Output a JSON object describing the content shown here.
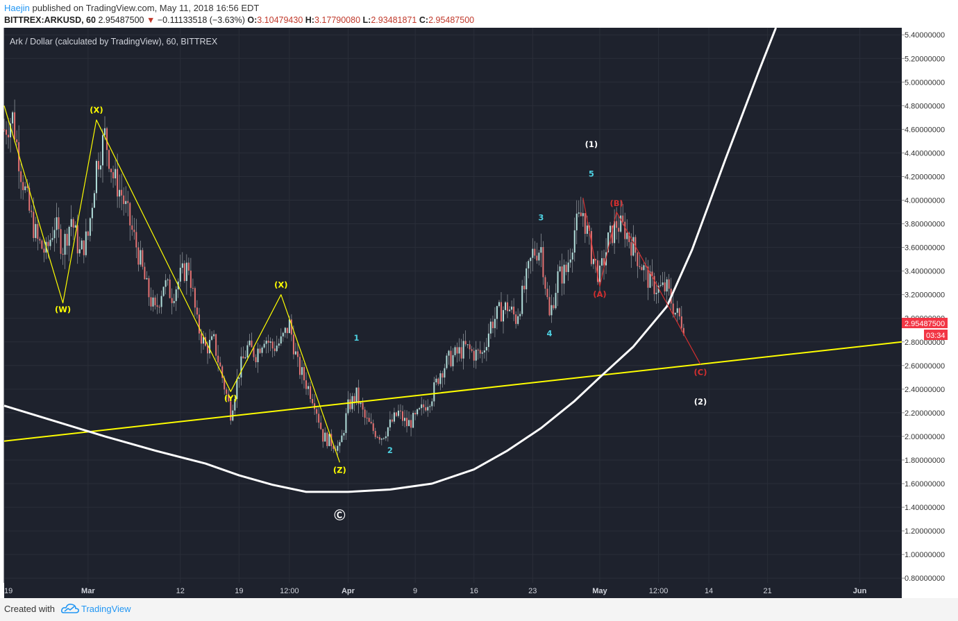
{
  "header": {
    "author": "Haejin",
    "published": "published on TradingView.com, May 11, 2018 16:56 EDT",
    "symbol": "BITTREX:ARKUSD, 60",
    "last_price": "2.95487500",
    "change": "−0.11133518 (−3.63%)",
    "o_label": "O:",
    "o_value": "3.10479430",
    "h_label": "H:",
    "h_value": "3.17790080",
    "l_label": "L:",
    "l_value": "2.93481871",
    "c_label": "C:",
    "c_value": "2.95487500"
  },
  "chart_data": {
    "type": "candlestick",
    "title": "Ark / Dollar (calculated by TradingView), 60, BITTREX",
    "y_range": [
      0.76,
      5.46
    ],
    "y_ticks": [
      "5.40000000",
      "5.20000000",
      "5.00000000",
      "4.80000000",
      "4.60000000",
      "4.40000000",
      "4.20000000",
      "4.00000000",
      "3.80000000",
      "3.60000000",
      "3.40000000",
      "3.20000000",
      "3.00000000",
      "2.80000000",
      "2.60000000",
      "2.40000000",
      "2.20000000",
      "2.00000000",
      "1.80000000",
      "1.60000000",
      "1.40000000",
      "1.20000000",
      "1.00000000",
      "0.80000000"
    ],
    "x_range": [
      "Feb 19",
      "Jun 6"
    ],
    "x_ticks": [
      {
        "label": "19",
        "date": "2018-02-19"
      },
      {
        "label": "Mar",
        "date": "2018-03-01"
      },
      {
        "label": "12",
        "date": "2018-03-12"
      },
      {
        "label": "19",
        "date": "2018-03-19"
      },
      {
        "label": "12:00",
        "date": "2018-03-25"
      },
      {
        "label": "Apr",
        "date": "2018-04-01"
      },
      {
        "label": "9",
        "date": "2018-04-09"
      },
      {
        "label": "16",
        "date": "2018-04-16"
      },
      {
        "label": "23",
        "date": "2018-04-23"
      },
      {
        "label": "May",
        "date": "2018-05-01"
      },
      {
        "label": "12:00",
        "date": "2018-05-08"
      },
      {
        "label": "14",
        "date": "2018-05-14"
      },
      {
        "label": "21",
        "date": "2018-05-21"
      },
      {
        "label": "Jun",
        "date": "2018-06-01"
      }
    ],
    "price_path": [
      [
        "2018-02-19",
        4.6
      ],
      [
        "2018-02-20",
        4.7
      ],
      [
        "2018-02-21",
        4.25
      ],
      [
        "2018-02-22",
        3.9
      ],
      [
        "2018-02-23",
        3.65
      ],
      [
        "2018-02-24",
        3.55
      ],
      [
        "2018-02-25",
        3.8
      ],
      [
        "2018-02-26",
        3.6
      ],
      [
        "2018-02-27",
        3.85
      ],
      [
        "2018-02-28",
        3.55
      ],
      [
        "2018-03-01",
        3.7
      ],
      [
        "2018-03-02",
        4.3
      ],
      [
        "2018-03-03",
        4.55
      ],
      [
        "2018-03-04",
        4.2
      ],
      [
        "2018-03-05",
        4.05
      ],
      [
        "2018-03-06",
        3.8
      ],
      [
        "2018-03-07",
        3.55
      ],
      [
        "2018-03-08",
        3.25
      ],
      [
        "2018-03-09",
        3.05
      ],
      [
        "2018-03-10",
        3.3
      ],
      [
        "2018-03-11",
        3.2
      ],
      [
        "2018-03-12",
        3.35
      ],
      [
        "2018-03-13",
        3.45
      ],
      [
        "2018-03-14",
        2.95
      ],
      [
        "2018-03-15",
        2.75
      ],
      [
        "2018-03-16",
        2.8
      ],
      [
        "2018-03-17",
        2.5
      ],
      [
        "2018-03-18",
        2.2
      ],
      [
        "2018-03-19",
        2.55
      ],
      [
        "2018-03-20",
        2.75
      ],
      [
        "2018-03-21",
        2.7
      ],
      [
        "2018-03-22",
        2.85
      ],
      [
        "2018-03-23",
        2.75
      ],
      [
        "2018-03-24",
        2.8
      ],
      [
        "2018-03-25",
        2.95
      ],
      [
        "2018-03-26",
        2.6
      ],
      [
        "2018-03-27",
        2.45
      ],
      [
        "2018-03-28",
        2.3
      ],
      [
        "2018-03-29",
        2.0
      ],
      [
        "2018-03-30",
        1.95
      ],
      [
        "2018-03-31",
        1.9
      ],
      [
        "2018-04-01",
        2.25
      ],
      [
        "2018-04-02",
        2.35
      ],
      [
        "2018-04-03",
        2.15
      ],
      [
        "2018-04-04",
        2.05
      ],
      [
        "2018-04-05",
        2.0
      ],
      [
        "2018-04-06",
        2.1
      ],
      [
        "2018-04-07",
        2.2
      ],
      [
        "2018-04-08",
        2.1
      ],
      [
        "2018-04-09",
        2.15
      ],
      [
        "2018-04-10",
        2.25
      ],
      [
        "2018-04-11",
        2.35
      ],
      [
        "2018-04-12",
        2.55
      ],
      [
        "2018-04-13",
        2.65
      ],
      [
        "2018-04-14",
        2.7
      ],
      [
        "2018-04-15",
        2.75
      ],
      [
        "2018-04-16",
        2.7
      ],
      [
        "2018-04-17",
        2.7
      ],
      [
        "2018-04-18",
        2.95
      ],
      [
        "2018-04-19",
        3.05
      ],
      [
        "2018-04-20",
        3.1
      ],
      [
        "2018-04-21",
        3.0
      ],
      [
        "2018-04-22",
        3.25
      ],
      [
        "2018-04-23",
        3.55
      ],
      [
        "2018-04-24",
        3.6
      ],
      [
        "2018-04-25",
        3.0
      ],
      [
        "2018-04-26",
        3.35
      ],
      [
        "2018-04-27",
        3.4
      ],
      [
        "2018-04-28",
        3.75
      ],
      [
        "2018-04-29",
        3.9
      ],
      [
        "2018-04-30",
        3.55
      ],
      [
        "2018-05-01",
        3.35
      ],
      [
        "2018-05-02",
        3.65
      ],
      [
        "2018-05-03",
        3.8
      ],
      [
        "2018-05-04",
        3.75
      ],
      [
        "2018-05-05",
        3.6
      ],
      [
        "2018-05-06",
        3.45
      ],
      [
        "2018-05-07",
        3.3
      ],
      [
        "2018-05-08",
        3.25
      ],
      [
        "2018-05-09",
        3.25
      ],
      [
        "2018-05-10",
        3.05
      ],
      [
        "2018-05-11",
        2.95
      ]
    ],
    "overlays": [
      {
        "type": "trendline",
        "color": "#ffff00",
        "points": [
          [
            "2018-02-19",
            1.96
          ],
          [
            "2018-06-06",
            2.8
          ]
        ]
      },
      {
        "type": "curve",
        "color": "#ffffff",
        "points": [
          [
            "2018-02-19",
            2.26
          ],
          [
            "2018-02-25",
            2.13
          ],
          [
            "2018-03-03",
            2.0
          ],
          [
            "2018-03-09",
            1.88
          ],
          [
            "2018-03-15",
            1.77
          ],
          [
            "2018-03-19",
            1.67
          ],
          [
            "2018-03-23",
            1.59
          ],
          [
            "2018-03-27",
            1.53
          ],
          [
            "2018-04-01",
            1.53
          ],
          [
            "2018-04-06",
            1.55
          ],
          [
            "2018-04-11",
            1.6
          ],
          [
            "2018-04-16",
            1.72
          ],
          [
            "2018-04-20",
            1.88
          ],
          [
            "2018-04-24",
            2.07
          ],
          [
            "2018-04-28",
            2.3
          ],
          [
            "2018-05-01",
            2.5
          ],
          [
            "2018-05-05",
            2.76
          ],
          [
            "2018-05-09",
            3.1
          ],
          [
            "2018-05-12",
            3.58
          ],
          [
            "2018-05-16",
            4.35
          ],
          [
            "2018-05-20",
            5.1
          ],
          [
            "2018-05-22",
            5.46
          ]
        ]
      },
      {
        "type": "path",
        "color": "#ffff00",
        "points": [
          [
            "2018-02-19",
            4.8
          ],
          [
            "2018-02-26",
            3.13
          ],
          [
            "2018-03-02",
            4.68
          ],
          [
            "2018-03-18",
            2.38
          ],
          [
            "2018-03-24",
            3.2
          ],
          [
            "2018-03-31",
            1.78
          ]
        ]
      },
      {
        "type": "path",
        "color": "#d32f2f",
        "points": [
          [
            "2018-04-29",
            4.02
          ],
          [
            "2018-05-01",
            3.27
          ],
          [
            "2018-05-03",
            3.9
          ],
          [
            "2018-05-13",
            2.61
          ]
        ]
      }
    ],
    "labels": [
      {
        "text": "(W)",
        "x": "2018-02-26",
        "y": 3.05,
        "color": "#ffff00"
      },
      {
        "text": "(X)",
        "x": "2018-03-02",
        "y": 4.74,
        "color": "#ffff00"
      },
      {
        "text": "(Y)",
        "x": "2018-03-18",
        "y": 2.3,
        "color": "#ffff00"
      },
      {
        "text": "(X)",
        "x": "2018-03-24",
        "y": 3.26,
        "color": "#ffff00"
      },
      {
        "text": "(Z)",
        "x": "2018-03-31",
        "y": 1.69,
        "color": "#ffff00"
      },
      {
        "text": "Ⓒ",
        "x": "2018-03-31",
        "y": 1.3,
        "color": "#ffffff"
      },
      {
        "text": "1",
        "x": "2018-04-02",
        "y": 2.81,
        "color": "#4dd0e1"
      },
      {
        "text": "2",
        "x": "2018-04-06",
        "y": 1.86,
        "color": "#4dd0e1"
      },
      {
        "text": "3",
        "x": "2018-04-24",
        "y": 3.83,
        "color": "#4dd0e1"
      },
      {
        "text": "4",
        "x": "2018-04-25",
        "y": 2.85,
        "color": "#4dd0e1"
      },
      {
        "text": "5",
        "x": "2018-04-30",
        "y": 4.2,
        "color": "#4dd0e1"
      },
      {
        "text": "(1)",
        "x": "2018-04-30",
        "y": 4.45,
        "color": "#ffffff"
      },
      {
        "text": "(A)",
        "x": "2018-05-01",
        "y": 3.18,
        "color": "#d32f2f"
      },
      {
        "text": "(B)",
        "x": "2018-05-03",
        "y": 3.95,
        "color": "#d32f2f"
      },
      {
        "text": "(C)",
        "x": "2018-05-13",
        "y": 2.52,
        "color": "#d32f2f"
      },
      {
        "text": "(2)",
        "x": "2018-05-13",
        "y": 2.27,
        "color": "#ffffff"
      }
    ],
    "price_tag": {
      "value": "2.95487500",
      "countdown": "03:34",
      "color": "#f23645"
    },
    "grid": true,
    "background": "#1e222d"
  },
  "footer": {
    "created_with": "Created with",
    "brand": "TradingView"
  }
}
